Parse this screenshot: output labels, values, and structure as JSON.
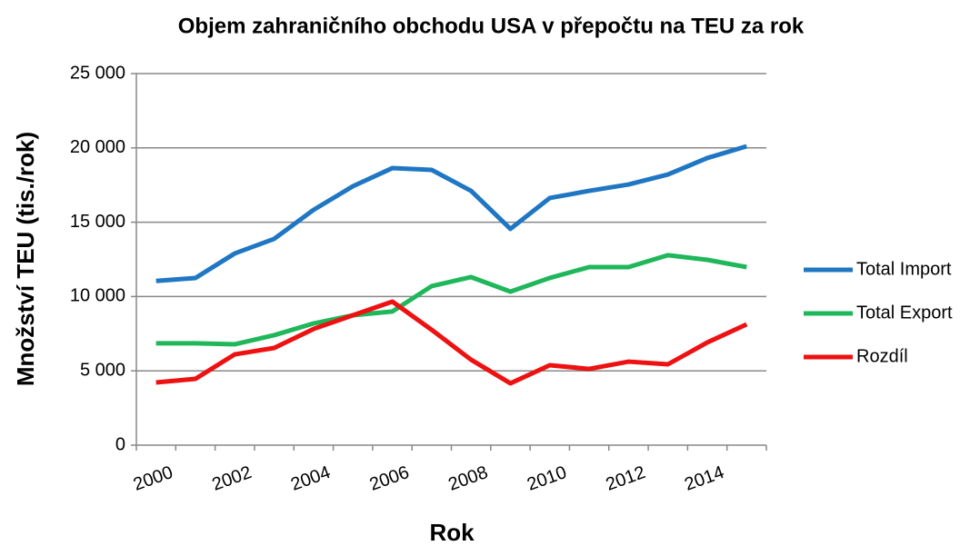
{
  "chart_data": {
    "type": "line",
    "title": "Objem zahraničního obchodu USA v přepočtu na TEU za rok",
    "x_label": "Rok",
    "y_label": "Množství TEU (tis./rok)",
    "categories": [
      "2000",
      null,
      "2002",
      null,
      "2004",
      null,
      "2006",
      null,
      "2008",
      null,
      "2010",
      null,
      "2012",
      null,
      "2014",
      null
    ],
    "series": [
      {
        "name": "Total Import",
        "color": "#1f77c4",
        "values": [
          11050,
          11250,
          12900,
          13880,
          15830,
          17420,
          18640,
          18520,
          17110,
          14550,
          16630,
          17110,
          17540,
          18210,
          19320,
          20110
        ]
      },
      {
        "name": "Total Export",
        "color": "#1fb75a",
        "values": [
          6850,
          6850,
          6790,
          7400,
          8190,
          8740,
          8990,
          10700,
          11310,
          10330,
          11250,
          11980,
          11980,
          12780,
          12470,
          11980
        ]
      },
      {
        "name": "Rozdíl",
        "color": "#ee1111",
        "values": [
          4220,
          4460,
          6110,
          6540,
          7820,
          8740,
          9660,
          7760,
          5750,
          4160,
          5380,
          5130,
          5620,
          5440,
          6910,
          8130
        ]
      }
    ],
    "ylim": [
      0,
      25000
    ],
    "yticks": [
      0,
      {
        "value": 5000,
        "label": "5 000"
      },
      {
        "value": 10000,
        "label": "10 000"
      },
      {
        "value": 15000,
        "label": "15 000"
      },
      {
        "value": 20000,
        "label": "20 000"
      },
      {
        "value": 25000,
        "label": "25 000"
      }
    ],
    "grid": true,
    "legend": "right"
  }
}
